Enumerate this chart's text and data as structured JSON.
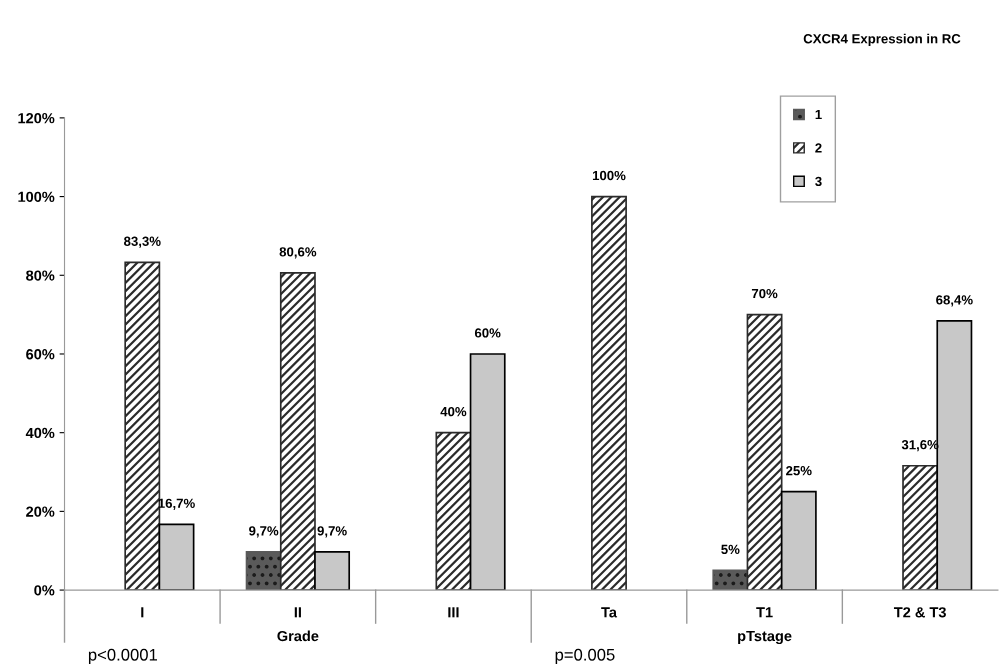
{
  "chart_data": {
    "type": "bar",
    "title": "CXCR4 Expression in RC",
    "categories": [
      "I",
      "II",
      "III",
      "Ta",
      "T1",
      "T2 & T3"
    ],
    "series": [
      {
        "name": "1",
        "color": "#5a5a5a",
        "values": [
          null,
          9.7,
          null,
          null,
          5,
          null
        ],
        "value_labels": [
          null,
          "9,7%",
          null,
          null,
          "5%",
          null
        ]
      },
      {
        "name": "2",
        "color": "#2b2b2b",
        "values": [
          83.3,
          80.6,
          40,
          100,
          70,
          31.6
        ],
        "value_labels": [
          "83,3%",
          "80,6%",
          "40%",
          "100%",
          "70%",
          "31,6%"
        ]
      },
      {
        "name": "3",
        "color": "#c8c8c8",
        "values": [
          16.7,
          9.7,
          60,
          null,
          25,
          68.4
        ],
        "value_labels": [
          "16,7%",
          "9,7%",
          "60%",
          null,
          "25%",
          "68,4%"
        ]
      }
    ],
    "ylim": [
      0,
      120
    ],
    "yticks": [
      {
        "value": 0,
        "label": "0%"
      },
      {
        "value": 20,
        "label": "20%"
      },
      {
        "value": 40,
        "label": "40%"
      },
      {
        "value": 60,
        "label": "60%"
      },
      {
        "value": 80,
        "label": "80%"
      },
      {
        "value": 100,
        "label": "100%"
      },
      {
        "value": 120,
        "label": "120%"
      }
    ],
    "annotations": [
      "Grade",
      "pTstage",
      "p<0.0001",
      "p=0.005"
    ],
    "legend": "top right",
    "grid": false
  }
}
